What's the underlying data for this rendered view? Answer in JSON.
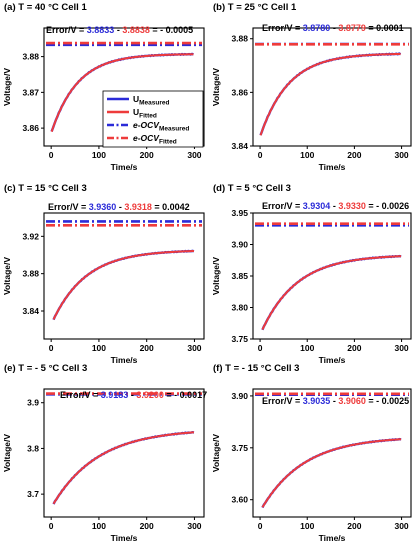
{
  "figure": {
    "colors": {
      "measured": "#2b2bd8",
      "fitted": "#ee3b3b",
      "text": "#000000"
    },
    "legend": {
      "entries": [
        {
          "main": "U",
          "sub": "Measured",
          "style": "solid",
          "color": "#2b2bd8"
        },
        {
          "main": "U",
          "sub": "Fitted",
          "style": "solid",
          "color": "#ee3b3b"
        },
        {
          "main": "e-OCV",
          "sub": "Measured",
          "style": "dashdot",
          "color": "#2b2bd8"
        },
        {
          "main": "e-OCV",
          "sub": "Fitted",
          "style": "dashdot",
          "color": "#ee3b3b"
        }
      ]
    }
  },
  "chart_data": [
    {
      "type": "line",
      "panel": "(a)",
      "title": "(a) T = 40 °C Cell 1",
      "xlabel": "Time/s",
      "ylabel": "Voltage/V",
      "xlim": [
        -15,
        320
      ],
      "ylim": [
        3.855,
        3.888
      ],
      "xticks": [
        0,
        100,
        200,
        300
      ],
      "yticks": [
        3.86,
        3.87,
        3.88
      ],
      "ytick_labels": [
        "3.86",
        "3.87",
        "3.88"
      ],
      "curve": {
        "x0": 1,
        "x1": 300,
        "y_start": 3.859,
        "y_end": 3.8808,
        "tau": 55
      },
      "ocv_measured": 3.8833,
      "ocv_fitted": 3.8838,
      "error": {
        "prefix": "Error/V = ",
        "measured": "3.8833",
        "minus": " - ",
        "fitted": "3.8838",
        "result": " = - 0.0005"
      },
      "series": [
        {
          "name": "U_Measured"
        },
        {
          "name": "U_Fitted"
        },
        {
          "name": "e-OCV_Measured"
        },
        {
          "name": "e-OCV_Fitted"
        }
      ]
    },
    {
      "type": "line",
      "panel": "(b)",
      "title": "(b) T = 25 °C Cell 1",
      "xlabel": "Time/s",
      "ylabel": "Voltage/V",
      "xlim": [
        -15,
        320
      ],
      "ylim": [
        3.84,
        3.884
      ],
      "xticks": [
        0,
        100,
        200,
        300
      ],
      "yticks": [
        3.84,
        3.86,
        3.88
      ],
      "ytick_labels": [
        "3.84",
        "3.86",
        "3.88"
      ],
      "curve": {
        "x0": 1,
        "x1": 300,
        "y_start": 3.844,
        "y_end": 3.8746,
        "tau": 60
      },
      "ocv_measured": 3.878,
      "ocv_fitted": 3.8779,
      "error": {
        "prefix": "Error/V = ",
        "measured": "3.8780",
        "minus": " - ",
        "fitted": "3.8779",
        "result": " = 0.0001"
      }
    },
    {
      "type": "line",
      "panel": "(c)",
      "title": "(c) T = 15 °C Cell 3",
      "xlabel": "Time/s",
      "ylabel": "Voltage/V",
      "xlim": [
        -15,
        320
      ],
      "ylim": [
        3.81,
        3.945
      ],
      "xticks": [
        0,
        100,
        200,
        300
      ],
      "yticks": [
        3.84,
        3.88,
        3.92
      ],
      "ytick_labels": [
        "3.84",
        "3.88",
        "3.92"
      ],
      "curve": {
        "x0": 5,
        "x1": 300,
        "y_start": 3.831,
        "y_end": 3.9055,
        "tau": 70
      },
      "ocv_measured": 3.936,
      "ocv_fitted": 3.9318,
      "error": {
        "prefix": "Error/V = ",
        "measured": "3.9360",
        "minus": " - ",
        "fitted": "3.9318",
        "result": " = 0.0042"
      }
    },
    {
      "type": "line",
      "panel": "(d)",
      "title": "(d) T = 5 °C Cell 3",
      "xlabel": "Time/s",
      "ylabel": "Voltage/V",
      "xlim": [
        -15,
        320
      ],
      "ylim": [
        3.75,
        3.95
      ],
      "xticks": [
        0,
        100,
        200,
        300
      ],
      "yticks": [
        3.75,
        3.8,
        3.85,
        3.9,
        3.95
      ],
      "ytick_labels": [
        "3.75",
        "3.80",
        "3.85",
        "3.90",
        "3.95"
      ],
      "curve": {
        "x0": 5,
        "x1": 300,
        "y_start": 3.765,
        "y_end": 3.884,
        "tau": 75
      },
      "ocv_measured": 3.9304,
      "ocv_fitted": 3.933,
      "error": {
        "prefix": "Error/V = ",
        "measured": "3.9304",
        "minus": " - ",
        "fitted": "3.9330",
        "result": " = - 0.0026"
      }
    },
    {
      "type": "line",
      "panel": "(e)",
      "title": "(e) T = - 5 °C Cell 3",
      "xlabel": "Time/s",
      "ylabel": "Voltage/V",
      "xlim": [
        -15,
        320
      ],
      "ylim": [
        3.65,
        3.93
      ],
      "xticks": [
        0,
        100,
        200,
        300
      ],
      "yticks": [
        3.7,
        3.8,
        3.9
      ],
      "ytick_labels": [
        "3.7",
        "3.8",
        "3.9"
      ],
      "curve": {
        "x0": 5,
        "x1": 300,
        "y_start": 3.679,
        "y_end": 3.843,
        "tau": 95
      },
      "ocv_measured": 3.9183,
      "ocv_fitted": 3.92,
      "error": {
        "prefix": "Error/V = ",
        "measured": "3.9183",
        "minus": " - ",
        "fitted": "3.9200",
        "result": " = - 0.0017"
      }
    },
    {
      "type": "line",
      "panel": "(f)",
      "title": "(f) T = - 15 °C Cell 3",
      "xlabel": "Time/s",
      "ylabel": "Voltage/V",
      "xlim": [
        -15,
        320
      ],
      "ylim": [
        3.55,
        3.92
      ],
      "xticks": [
        0,
        100,
        200,
        300
      ],
      "yticks": [
        3.6,
        3.75,
        3.9
      ],
      "ytick_labels": [
        "3.60",
        "3.75",
        "3.90"
      ],
      "curve": {
        "x0": 5,
        "x1": 300,
        "y_start": 3.578,
        "y_end": 3.783,
        "tau": 90
      },
      "ocv_measured": 3.9035,
      "ocv_fitted": 3.906,
      "error": {
        "prefix": "Error/V = ",
        "measured": "3.9035",
        "minus": " - ",
        "fitted": "3.9060",
        "result": " = - 0.0025"
      }
    }
  ]
}
